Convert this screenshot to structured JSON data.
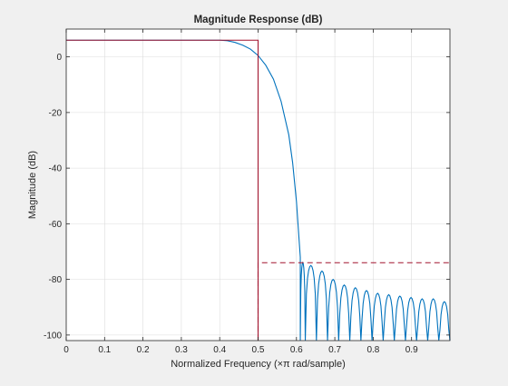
{
  "chart_data": {
    "type": "line",
    "title": "Magnitude Response (dB)",
    "xlabel": "Normalized Frequency (×π rad/sample)",
    "ylabel": "Magnitude (dB)",
    "xlim": [
      0,
      1
    ],
    "ylim": [
      -102,
      10
    ],
    "grid": true,
    "legend": "none",
    "x_ticks": [
      0,
      0.1,
      0.2,
      0.3,
      0.4,
      0.5,
      0.6,
      0.7,
      0.8,
      0.9
    ],
    "x_tick_labels": [
      "0",
      "0.1",
      "0.2",
      "0.3",
      "0.4",
      "0.5",
      "0.6",
      "0.7",
      "0.8",
      "0.9"
    ],
    "y_ticks": [
      0,
      -20,
      -40,
      -60,
      -80,
      -100
    ],
    "y_tick_labels": [
      "0",
      "-20",
      "-40",
      "-60",
      "-80",
      "-100"
    ],
    "series": [
      {
        "color": "#0072bd",
        "style": "solid",
        "x": [
          0,
          0.4,
          0.42,
          0.44,
          0.46,
          0.48,
          0.5,
          0.52,
          0.54,
          0.56,
          0.58,
          0.59,
          0.6,
          0.605,
          0.61
        ],
        "y": [
          6,
          6,
          5.8,
          5.2,
          4.2,
          2.8,
          0.5,
          -3,
          -8,
          -16,
          -28,
          -38,
          -52,
          -62,
          -72
        ],
        "stopband_lobes": [
          {
            "start": 0.61,
            "end": 0.623,
            "peak": -74
          },
          {
            "start": 0.623,
            "end": 0.652,
            "peak": -75
          },
          {
            "start": 0.652,
            "end": 0.681,
            "peak": -77
          },
          {
            "start": 0.681,
            "end": 0.71,
            "peak": -80
          },
          {
            "start": 0.71,
            "end": 0.739,
            "peak": -82
          },
          {
            "start": 0.739,
            "end": 0.768,
            "peak": -83
          },
          {
            "start": 0.768,
            "end": 0.797,
            "peak": -84
          },
          {
            "start": 0.797,
            "end": 0.826,
            "peak": -85
          },
          {
            "start": 0.826,
            "end": 0.855,
            "peak": -85.5
          },
          {
            "start": 0.855,
            "end": 0.884,
            "peak": -86
          },
          {
            "start": 0.884,
            "end": 0.913,
            "peak": -86.5
          },
          {
            "start": 0.913,
            "end": 0.942,
            "peak": -87
          },
          {
            "start": 0.942,
            "end": 0.971,
            "peak": -87
          },
          {
            "start": 0.971,
            "end": 1.0,
            "peak": -88
          }
        ]
      },
      {
        "color": "#a2142f",
        "style": "solid",
        "x": [
          0,
          0.5,
          0.5
        ],
        "y": [
          6,
          6,
          -102
        ]
      },
      {
        "color": "#a2142f",
        "style": "dashed",
        "x": [
          0.5,
          0.5,
          1.0
        ],
        "y": [
          -102,
          -74,
          -74
        ]
      }
    ]
  }
}
